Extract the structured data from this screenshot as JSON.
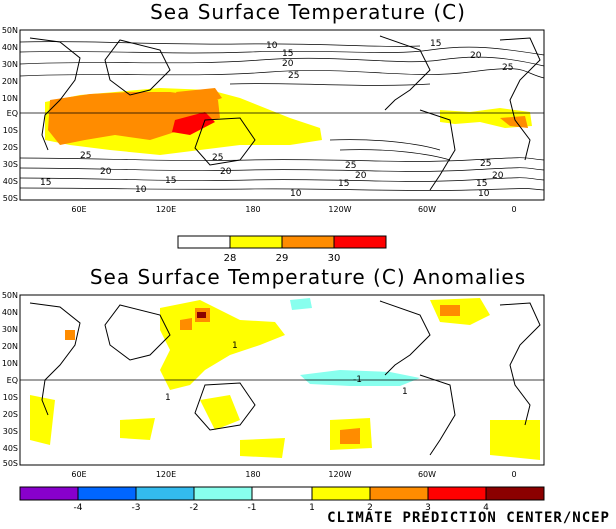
{
  "panels": [
    {
      "title": "Sea Surface Temperature (C)",
      "lat_labels": [
        "50N",
        "40N",
        "30N",
        "20N",
        "10N",
        "EQ",
        "10S",
        "20S",
        "30S",
        "40S",
        "50S"
      ],
      "lon_labels": [
        "60E",
        "120E",
        "180",
        "120W",
        "60W",
        "0"
      ],
      "contour_labels": [
        "10",
        "15",
        "20",
        "25",
        "25",
        "20",
        "15",
        "10",
        "15",
        "20",
        "25",
        "25",
        "20",
        "15",
        "10",
        "10",
        "15",
        "20",
        "25",
        "25",
        "20",
        "15"
      ],
      "colorbar": {
        "colors": [
          "#ffffff",
          "#ffff00",
          "#ff8c00",
          "#ff0000"
        ],
        "tick_labels": [
          "28",
          "29",
          "30"
        ]
      }
    },
    {
      "title": "Sea Surface Temperature (C) Anomalies",
      "lat_labels": [
        "50N",
        "40N",
        "30N",
        "20N",
        "10N",
        "EQ",
        "10S",
        "20S",
        "30S",
        "40S",
        "50S"
      ],
      "lon_labels": [
        "60E",
        "120E",
        "180",
        "120W",
        "60W",
        "0"
      ],
      "contour_labels": [
        "1",
        "-1",
        "1",
        "1"
      ],
      "colorbar": {
        "colors": [
          "#8800cc",
          "#0066ff",
          "#33bbee",
          "#88ffee",
          "#ffffff",
          "#ffff00",
          "#ff8c00",
          "#ff0000",
          "#8b0000"
        ],
        "tick_labels": [
          "-4",
          "-3",
          "-2",
          "-1",
          "1",
          "2",
          "3",
          "4"
        ]
      }
    }
  ],
  "credit": "CLIMATE PREDICTION CENTER/NCEP"
}
